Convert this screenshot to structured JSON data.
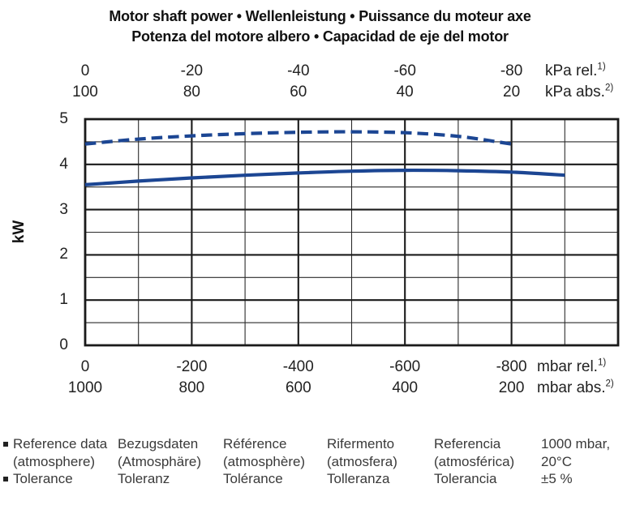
{
  "title": {
    "line1": "Motor shaft power  •  Wellenleistung  •  Puissance du moteur axe",
    "line2": "Potenza del motore albero  •  Capacidad de eje del motor"
  },
  "chart_data": {
    "type": "line",
    "title": "Motor shaft power • Wellenleistung • Puissance du moteur axe • Potenza del motore albero • Capacidad de eje del motor",
    "ylabel": "kW",
    "ylim": [
      0,
      5
    ],
    "ytick_major_step": 1,
    "ytick_minor_step": 0.5,
    "yticks": [
      "5",
      "4",
      "3",
      "2",
      "1",
      "0"
    ],
    "x_range_mbar_rel": [
      0,
      -1000
    ],
    "grid": "major and minor grid on, boxed plot",
    "legend": "none",
    "axes": {
      "top_rows": [
        {
          "ticks": [
            "0",
            "-20",
            "-40",
            "-60",
            "-80"
          ],
          "unit": "kPa rel.",
          "unit_sup": "1)"
        },
        {
          "ticks": [
            "100",
            "80",
            "60",
            "40",
            "20"
          ],
          "unit": "kPa abs.",
          "unit_sup": "2)"
        }
      ],
      "bottom_rows": [
        {
          "ticks": [
            "0",
            "-200",
            "-400",
            "-600",
            "-800"
          ],
          "unit": "mbar rel.",
          "unit_sup": "1)"
        },
        {
          "ticks": [
            "1000",
            "800",
            "600",
            "400",
            "200"
          ],
          "unit": "mbar abs.",
          "unit_sup": "2)"
        }
      ]
    },
    "series": [
      {
        "name": "dashed-curve",
        "style": "dashed",
        "x_mbar_rel": [
          0,
          -100,
          -200,
          -300,
          -400,
          -500,
          -600,
          -700,
          -800
        ],
        "kw": [
          4.45,
          4.56,
          4.63,
          4.68,
          4.71,
          4.72,
          4.7,
          4.62,
          4.45
        ]
      },
      {
        "name": "solid-curve",
        "style": "solid",
        "x_mbar_rel": [
          0,
          -100,
          -200,
          -300,
          -400,
          -500,
          -600,
          -700,
          -800,
          -900
        ],
        "kw": [
          3.55,
          3.63,
          3.7,
          3.76,
          3.81,
          3.85,
          3.87,
          3.86,
          3.83,
          3.76
        ]
      }
    ]
  },
  "footer": {
    "columns": [
      {
        "lines": [
          "Reference data",
          "(atmosphere)",
          "Tolerance"
        ],
        "bullet_lines": [
          0,
          2
        ]
      },
      {
        "lines": [
          "Bezugsdaten",
          "(Atmosphäre)",
          "Toleranz"
        ],
        "bullet_lines": []
      },
      {
        "lines": [
          "Référence",
          "(atmosphère)",
          "Tolérance"
        ],
        "bullet_lines": []
      },
      {
        "lines": [
          "Rifermento",
          "(atmosfera)",
          "Tolleranza"
        ],
        "bullet_lines": []
      },
      {
        "lines": [
          "Referencia",
          "(atmosférica)",
          "Tolerancia"
        ],
        "bullet_lines": []
      },
      {
        "lines": [
          "1000 mbar,",
          "20°C",
          "±5 %"
        ],
        "bullet_lines": []
      }
    ]
  },
  "colors": {
    "curve": "#1c4693",
    "grid_major": "#1a1a1a",
    "grid_minor": "#2b2b2b",
    "text": "#1a1a1a",
    "footer_text": "#3a3a3a",
    "rule": "#8f8f8f"
  }
}
